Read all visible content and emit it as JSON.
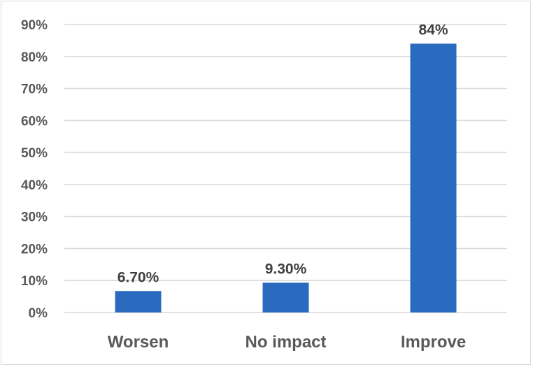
{
  "chart_data": {
    "type": "bar",
    "title": "",
    "xlabel": "",
    "ylabel": "",
    "categories": [
      "Worsen",
      "No impact",
      "Improve"
    ],
    "values": [
      6.7,
      9.3,
      84
    ],
    "data_labels": [
      "6.70%",
      "9.30%",
      "84%"
    ],
    "ylim": [
      0,
      90
    ],
    "y_ticks": [
      0,
      10,
      20,
      30,
      40,
      50,
      60,
      70,
      80,
      90
    ],
    "y_tick_labels": [
      "0%",
      "10%",
      "20%",
      "30%",
      "40%",
      "50%",
      "60%",
      "70%",
      "80%",
      "90%"
    ],
    "grid": true,
    "legend": "none",
    "colors": {
      "bar": "#2a6bbf",
      "grid": "#d9d9d9",
      "axis_text": "#595959",
      "label_text": "#404040"
    }
  }
}
